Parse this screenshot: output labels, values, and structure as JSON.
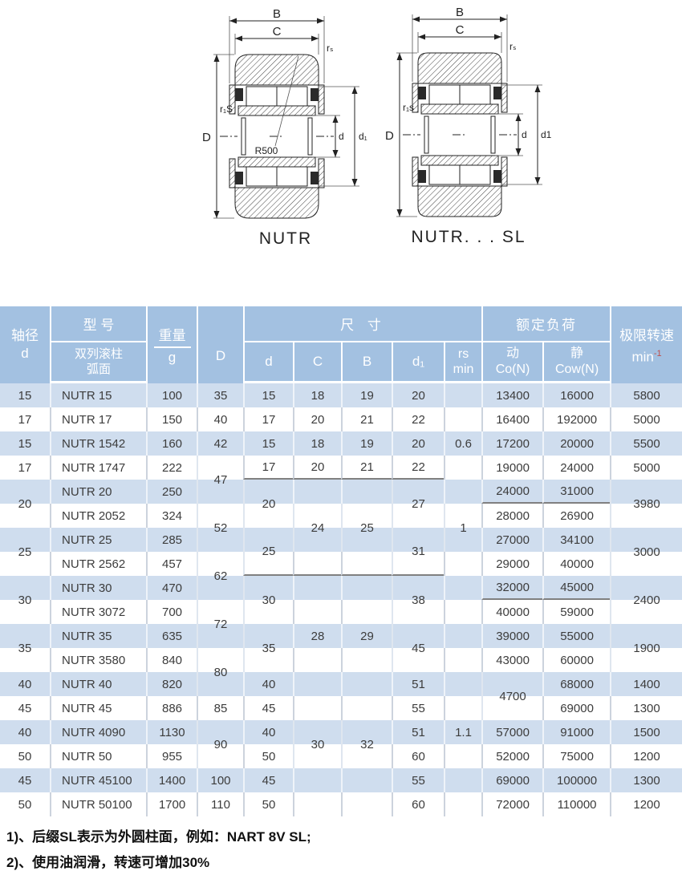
{
  "diagrams": {
    "left": {
      "caption": "NUTR",
      "labels": {
        "B": "B",
        "C": "C",
        "rs": "rₛ",
        "r1s": "r₁S",
        "D": "D",
        "d": "d",
        "d1": "d₁",
        "r500": "R500"
      }
    },
    "right": {
      "caption": "NUTR. . . SL",
      "labels": {
        "B": "B",
        "C": "C",
        "rs": "rₛ",
        "r1s": "r₁s",
        "D": "D",
        "d": "d",
        "d1": "d1"
      }
    }
  },
  "table": {
    "header": {
      "shaft_line1": "轴径",
      "shaft_line2": "d",
      "model_group": "型 号",
      "model_sub_line1": "双列滚柱",
      "model_sub_line2": "弧面",
      "weight_group": "重量",
      "weight_unit": "g",
      "dia_D": "D",
      "dims_group": "尺  寸",
      "dim_d": "d",
      "dim_C": "C",
      "dim_B": "B",
      "dim_d1": "d₁",
      "rs_line1": "rs",
      "rs_line2": "min",
      "load_group": "额定负荷",
      "load_dyn_line1": "动",
      "load_dyn_line2": "Co(N)",
      "load_stat_line1": "静",
      "load_stat_line2": "Cow(N)",
      "speed_group": "极限转速",
      "speed_unit": "min",
      "speed_sup": "-1"
    },
    "rows": [
      {
        "cells": [
          {
            "c": 0,
            "v": "15"
          },
          {
            "c": 1,
            "v": "NUTR 15"
          },
          {
            "c": 2,
            "v": "100"
          },
          {
            "c": 3,
            "v": "35"
          },
          {
            "c": 4,
            "v": "15"
          },
          {
            "c": 5,
            "v": "18"
          },
          {
            "c": 6,
            "v": "19"
          },
          {
            "c": 7,
            "v": "20"
          },
          {
            "c": 8,
            "v": ""
          },
          {
            "c": 9,
            "v": "13400"
          },
          {
            "c": 10,
            "v": "16000"
          },
          {
            "c": 11,
            "v": "5800"
          }
        ]
      },
      {
        "cells": [
          {
            "c": 0,
            "v": "17"
          },
          {
            "c": 1,
            "v": "NUTR 17"
          },
          {
            "c": 2,
            "v": "150"
          },
          {
            "c": 3,
            "v": "40"
          },
          {
            "c": 4,
            "v": "17"
          },
          {
            "c": 5,
            "v": "20"
          },
          {
            "c": 6,
            "v": "21"
          },
          {
            "c": 7,
            "v": "22"
          },
          {
            "c": 8,
            "v": ""
          },
          {
            "c": 9,
            "v": "16400"
          },
          {
            "c": 10,
            "v": "192000"
          },
          {
            "c": 11,
            "v": "5000"
          }
        ]
      },
      {
        "cells": [
          {
            "c": 0,
            "v": "15"
          },
          {
            "c": 1,
            "v": "NUTR 1542"
          },
          {
            "c": 2,
            "v": "160"
          },
          {
            "c": 3,
            "v": "42"
          },
          {
            "c": 4,
            "v": "15"
          },
          {
            "c": 5,
            "v": "18"
          },
          {
            "c": 6,
            "v": "19"
          },
          {
            "c": 7,
            "v": "20"
          },
          {
            "c": 8,
            "v": "0.6"
          },
          {
            "c": 9,
            "v": "17200"
          },
          {
            "c": 10,
            "v": "20000"
          },
          {
            "c": 11,
            "v": "5500"
          }
        ]
      },
      {
        "cells": [
          {
            "c": 0,
            "v": "17"
          },
          {
            "c": 1,
            "v": "NUTR 1747"
          },
          {
            "c": 2,
            "v": "222"
          },
          {
            "c": 3,
            "v": "47",
            "span": 2
          },
          {
            "c": 4,
            "v": "17",
            "line": true
          },
          {
            "c": 5,
            "v": "20",
            "line": true
          },
          {
            "c": 6,
            "v": "21",
            "line": true
          },
          {
            "c": 7,
            "v": "22",
            "line": true
          },
          {
            "c": 8,
            "v": ""
          },
          {
            "c": 9,
            "v": "19000"
          },
          {
            "c": 10,
            "v": "24000"
          },
          {
            "c": 11,
            "v": "5000"
          }
        ]
      },
      {
        "cells": [
          {
            "c": 0,
            "v": "20",
            "span": 2
          },
          {
            "c": 1,
            "v": "NUTR 20"
          },
          {
            "c": 2,
            "v": "250"
          },
          {
            "c": 4,
            "v": "20",
            "span": 2
          },
          {
            "c": 5,
            "v": ""
          },
          {
            "c": 6,
            "v": ""
          },
          {
            "c": 7,
            "v": "27",
            "span": 2
          },
          {
            "c": 8,
            "v": ""
          },
          {
            "c": 9,
            "v": "24000",
            "line": true
          },
          {
            "c": 10,
            "v": "31000",
            "line": true
          },
          {
            "c": 11,
            "v": "3980",
            "span": 2
          }
        ]
      },
      {
        "cells": [
          {
            "c": 1,
            "v": "NUTR 2052"
          },
          {
            "c": 2,
            "v": "324"
          },
          {
            "c": 3,
            "v": "52",
            "span": 2
          },
          {
            "c": 5,
            "v": "24",
            "span": 2
          },
          {
            "c": 6,
            "v": "25",
            "span": 2
          },
          {
            "c": 8,
            "v": "1",
            "span": 2
          },
          {
            "c": 9,
            "v": "28000"
          },
          {
            "c": 10,
            "v": "26900"
          }
        ]
      },
      {
        "cells": [
          {
            "c": 0,
            "v": "25",
            "span": 2
          },
          {
            "c": 1,
            "v": "NUTR 25"
          },
          {
            "c": 2,
            "v": "285"
          },
          {
            "c": 4,
            "v": "25",
            "span": 2,
            "line": true
          },
          {
            "c": 7,
            "v": "31",
            "span": 2,
            "line": true
          },
          {
            "c": 9,
            "v": "27000"
          },
          {
            "c": 10,
            "v": "34100"
          },
          {
            "c": 11,
            "v": "3000",
            "span": 2
          }
        ]
      },
      {
        "cells": [
          {
            "c": 1,
            "v": "NUTR 2562"
          },
          {
            "c": 2,
            "v": "457"
          },
          {
            "c": 3,
            "v": "62",
            "span": 2
          },
          {
            "c": 5,
            "v": "",
            "line": true
          },
          {
            "c": 6,
            "v": "",
            "line": true
          },
          {
            "c": 8,
            "v": ""
          },
          {
            "c": 9,
            "v": "29000"
          },
          {
            "c": 10,
            "v": "40000"
          }
        ]
      },
      {
        "cells": [
          {
            "c": 0,
            "v": "30",
            "span": 2
          },
          {
            "c": 1,
            "v": "NUTR 30"
          },
          {
            "c": 2,
            "v": "470"
          },
          {
            "c": 4,
            "v": "30",
            "span": 2
          },
          {
            "c": 5,
            "v": ""
          },
          {
            "c": 6,
            "v": ""
          },
          {
            "c": 7,
            "v": "38",
            "span": 2
          },
          {
            "c": 8,
            "v": ""
          },
          {
            "c": 9,
            "v": "32000",
            "line": true
          },
          {
            "c": 10,
            "v": "45000",
            "line": true
          },
          {
            "c": 11,
            "v": "2400",
            "span": 2
          }
        ]
      },
      {
        "cells": [
          {
            "c": 1,
            "v": "NUTR 3072"
          },
          {
            "c": 2,
            "v": "700"
          },
          {
            "c": 3,
            "v": "72",
            "span": 2
          },
          {
            "c": 5,
            "v": ""
          },
          {
            "c": 6,
            "v": ""
          },
          {
            "c": 8,
            "v": ""
          },
          {
            "c": 9,
            "v": "40000"
          },
          {
            "c": 10,
            "v": "59000"
          }
        ]
      },
      {
        "cells": [
          {
            "c": 0,
            "v": "35",
            "span": 2
          },
          {
            "c": 1,
            "v": "NUTR 35"
          },
          {
            "c": 2,
            "v": "635"
          },
          {
            "c": 4,
            "v": "35",
            "span": 2
          },
          {
            "c": 5,
            "v": "28"
          },
          {
            "c": 6,
            "v": "29"
          },
          {
            "c": 7,
            "v": "45",
            "span": 2
          },
          {
            "c": 8,
            "v": ""
          },
          {
            "c": 9,
            "v": "39000"
          },
          {
            "c": 10,
            "v": "55000"
          },
          {
            "c": 11,
            "v": "1900",
            "span": 2
          }
        ]
      },
      {
        "cells": [
          {
            "c": 1,
            "v": "NUTR 3580"
          },
          {
            "c": 2,
            "v": "840"
          },
          {
            "c": 3,
            "v": "80",
            "span": 2
          },
          {
            "c": 5,
            "v": ""
          },
          {
            "c": 6,
            "v": ""
          },
          {
            "c": 8,
            "v": ""
          },
          {
            "c": 9,
            "v": "43000"
          },
          {
            "c": 10,
            "v": "60000"
          }
        ]
      },
      {
        "cells": [
          {
            "c": 0,
            "v": "40"
          },
          {
            "c": 1,
            "v": "NUTR 40"
          },
          {
            "c": 2,
            "v": "820"
          },
          {
            "c": 4,
            "v": "40"
          },
          {
            "c": 5,
            "v": ""
          },
          {
            "c": 6,
            "v": ""
          },
          {
            "c": 7,
            "v": "51"
          },
          {
            "c": 8,
            "v": ""
          },
          {
            "c": 9,
            "v": "4700",
            "span": 2
          },
          {
            "c": 10,
            "v": "68000"
          },
          {
            "c": 11,
            "v": "1400"
          }
        ]
      },
      {
        "cells": [
          {
            "c": 0,
            "v": "45"
          },
          {
            "c": 1,
            "v": "NUTR 45"
          },
          {
            "c": 2,
            "v": "886"
          },
          {
            "c": 3,
            "v": "85"
          },
          {
            "c": 4,
            "v": "45"
          },
          {
            "c": 5,
            "v": ""
          },
          {
            "c": 6,
            "v": ""
          },
          {
            "c": 7,
            "v": "55"
          },
          {
            "c": 8,
            "v": ""
          },
          {
            "c": 10,
            "v": "69000"
          },
          {
            "c": 11,
            "v": "1300"
          }
        ]
      },
      {
        "cells": [
          {
            "c": 0,
            "v": "40"
          },
          {
            "c": 1,
            "v": "NUTR 4090"
          },
          {
            "c": 2,
            "v": "1130"
          },
          {
            "c": 3,
            "v": "90",
            "span": 2
          },
          {
            "c": 4,
            "v": "40"
          },
          {
            "c": 5,
            "v": "30",
            "span": 2
          },
          {
            "c": 6,
            "v": "32",
            "span": 2
          },
          {
            "c": 7,
            "v": "51"
          },
          {
            "c": 8,
            "v": "1.1"
          },
          {
            "c": 9,
            "v": "57000"
          },
          {
            "c": 10,
            "v": "91000"
          },
          {
            "c": 11,
            "v": "1500"
          }
        ]
      },
      {
        "cells": [
          {
            "c": 0,
            "v": "50"
          },
          {
            "c": 1,
            "v": "NUTR 50"
          },
          {
            "c": 2,
            "v": "955"
          },
          {
            "c": 4,
            "v": "50"
          },
          {
            "c": 7,
            "v": "60"
          },
          {
            "c": 8,
            "v": ""
          },
          {
            "c": 9,
            "v": "52000"
          },
          {
            "c": 10,
            "v": "75000"
          },
          {
            "c": 11,
            "v": "1200"
          }
        ]
      },
      {
        "cells": [
          {
            "c": 0,
            "v": "45"
          },
          {
            "c": 1,
            "v": "NUTR 45100"
          },
          {
            "c": 2,
            "v": "1400"
          },
          {
            "c": 3,
            "v": "100"
          },
          {
            "c": 4,
            "v": "45"
          },
          {
            "c": 5,
            "v": ""
          },
          {
            "c": 6,
            "v": ""
          },
          {
            "c": 7,
            "v": "55"
          },
          {
            "c": 8,
            "v": ""
          },
          {
            "c": 9,
            "v": "69000"
          },
          {
            "c": 10,
            "v": "100000"
          },
          {
            "c": 11,
            "v": "1300"
          }
        ]
      },
      {
        "cells": [
          {
            "c": 0,
            "v": "50"
          },
          {
            "c": 1,
            "v": "NUTR 50100"
          },
          {
            "c": 2,
            "v": "1700"
          },
          {
            "c": 3,
            "v": "110"
          },
          {
            "c": 4,
            "v": "50"
          },
          {
            "c": 5,
            "v": ""
          },
          {
            "c": 6,
            "v": ""
          },
          {
            "c": 7,
            "v": "60"
          },
          {
            "c": 8,
            "v": ""
          },
          {
            "c": 9,
            "v": "72000"
          },
          {
            "c": 10,
            "v": "110000"
          },
          {
            "c": 11,
            "v": "1200"
          }
        ]
      }
    ]
  },
  "footnotes": {
    "line1": "1)、后缀SL表示为外圆柱面，例如：NART 8V SL;",
    "line2": "2)、使用油润滑，转速可增加30%"
  },
  "colors": {
    "header_bg": "#a3c1e1",
    "stripe_blue": "#cfddee",
    "stripe_white": "#ffffff",
    "dark_rule": "#808080",
    "sup_red": "#c0504d"
  }
}
